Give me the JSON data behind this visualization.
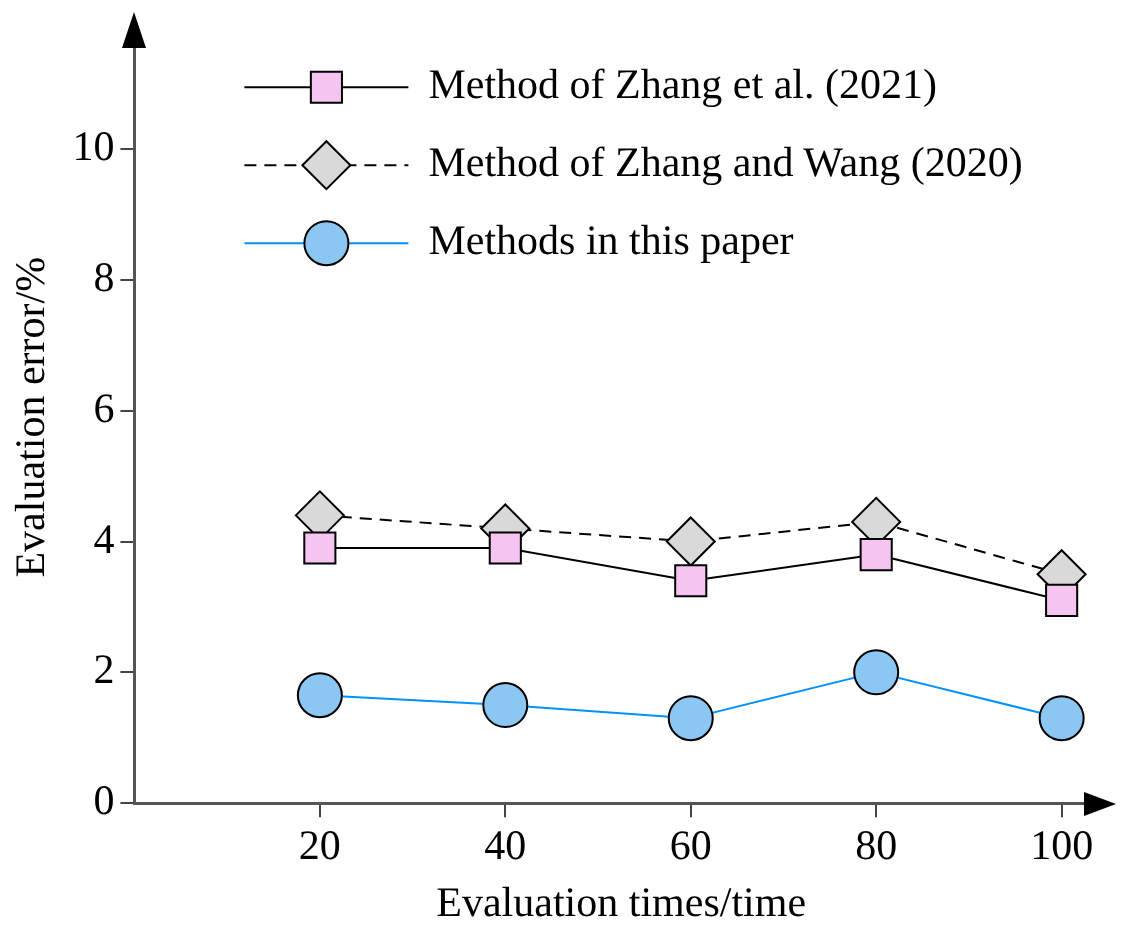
{
  "chart_data": {
    "type": "line",
    "xlabel": "Evaluation times/time",
    "ylabel": "Evaluation error/%",
    "x": [
      20,
      40,
      60,
      80,
      100
    ],
    "series": [
      {
        "name": "Method of Zhang et al. (2021)",
        "color": "#f5c4f0",
        "marker": "square",
        "line_style": "solid",
        "values": [
          3.9,
          3.9,
          3.4,
          3.8,
          3.1
        ]
      },
      {
        "name": "Method of Zhang and Wang (2020)",
        "color": "#d9d9d9",
        "marker": "diamond",
        "line_style": "dashed",
        "values": [
          4.4,
          4.2,
          4.0,
          4.3,
          3.5
        ]
      },
      {
        "name": "Methods in this paper",
        "color": "#8cc6f2",
        "marker": "circle",
        "line_style": "solid",
        "values": [
          1.65,
          1.5,
          1.3,
          2.0,
          1.3
        ]
      }
    ],
    "xlim": [
      0,
      105
    ],
    "xticks": [
      20,
      40,
      60,
      80,
      100
    ],
    "ylim": [
      0,
      11.8
    ],
    "yticks": [
      0,
      2,
      4,
      6,
      8,
      10
    ],
    "grid": false,
    "legend": "top"
  }
}
